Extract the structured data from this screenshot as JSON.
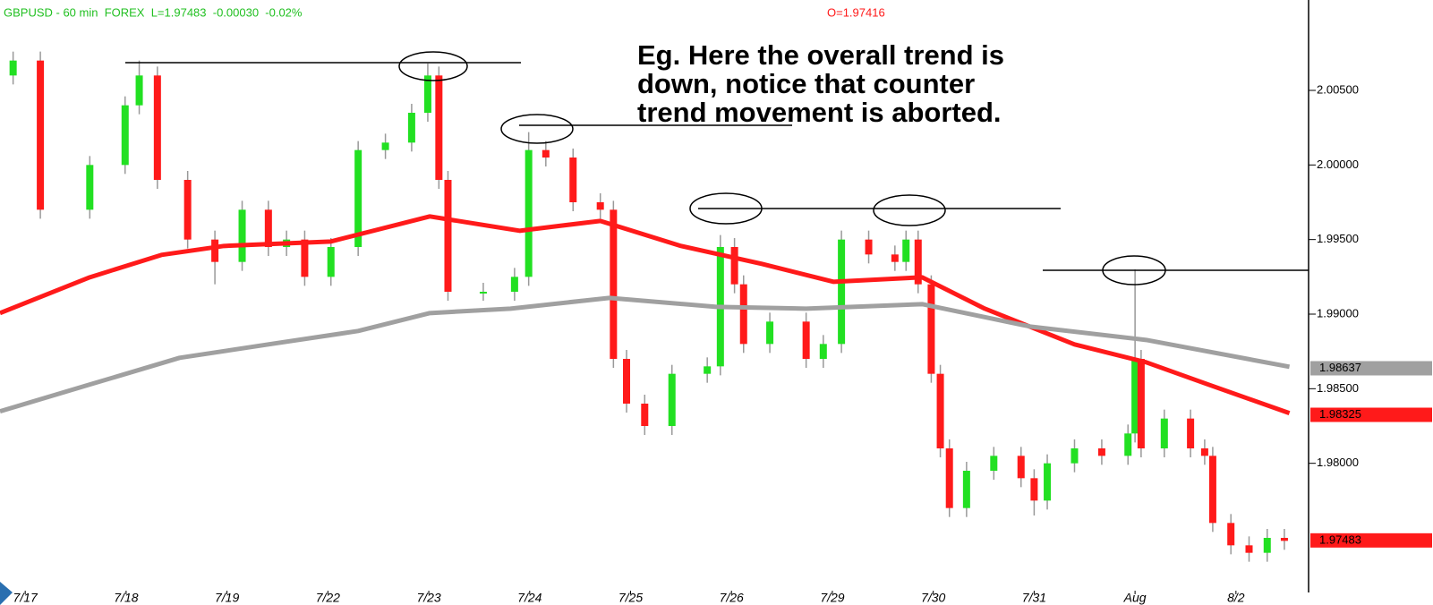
{
  "chart_data": {
    "type": "candlestick",
    "header": "GBPUSD - 60 min  FOREX  L=1.97483  -0.00030  -0.02%",
    "header_open": "O=1.97416",
    "annotation": [
      "Eg. Here the overall trend is",
      "down, notice that counter",
      "trend movement is aborted."
    ],
    "up_color": "#22e022",
    "down_color": "#ff1a1a",
    "xlim": [
      -0.25,
      12.72
    ],
    "xticks": [
      {
        "value": 0,
        "label": "7/17"
      },
      {
        "value": 1,
        "label": "7/18"
      },
      {
        "value": 2,
        "label": "7/19"
      },
      {
        "value": 3,
        "label": "7/22"
      },
      {
        "value": 4,
        "label": "7/23"
      },
      {
        "value": 5,
        "label": "7/24"
      },
      {
        "value": 6,
        "label": "7/25"
      },
      {
        "value": 7,
        "label": "7/26"
      },
      {
        "value": 8,
        "label": "7/29"
      },
      {
        "value": 9,
        "label": "7/30"
      },
      {
        "value": 10,
        "label": "7/31"
      },
      {
        "value": 11,
        "label": "Aug"
      },
      {
        "value": 12,
        "label": "8/2"
      }
    ],
    "ylim": [
      1.97146,
      2.01106
    ],
    "yticks": [
      {
        "value": 2.005,
        "label": "2.00500"
      },
      {
        "value": 2.0,
        "label": "2.00000"
      },
      {
        "value": 1.995,
        "label": "1.99500"
      },
      {
        "value": 1.99,
        "label": "1.99000"
      },
      {
        "value": 1.985,
        "label": "1.98500"
      },
      {
        "value": 1.98,
        "label": "1.98000"
      }
    ],
    "price_tags": [
      {
        "value": 1.98637,
        "label": "1.98637",
        "color": "#a0a0a0"
      },
      {
        "value": 1.98325,
        "label": "1.98325",
        "color": "#ff1a1a"
      },
      {
        "value": 1.97483,
        "label": "1.97483",
        "color": "#ff1a1a"
      }
    ],
    "x": [
      -0.12,
      0.15,
      0.64,
      0.99,
      1.13,
      1.31,
      1.61,
      1.88,
      2.15,
      2.41,
      2.59,
      2.77,
      3.03,
      3.3,
      3.57,
      3.83,
      3.99,
      4.1,
      4.19,
      4.54,
      4.85,
      4.99,
      5.16,
      5.43,
      5.7,
      5.83,
      5.96,
      6.14,
      6.41,
      6.76,
      6.89,
      7.03,
      7.12,
      7.38,
      7.74,
      7.91,
      8.09,
      8.36,
      8.62,
      8.73,
      8.85,
      8.98,
      9.07,
      9.16,
      9.33,
      9.6,
      9.87,
      10.0,
      10.13,
      10.4,
      10.67,
      10.93,
      11.0,
      11.06,
      11.29,
      11.55,
      11.69,
      11.77,
      11.95,
      12.13,
      12.31,
      12.48
    ],
    "open": [
      2.006,
      2.007,
      1.997,
      2.0,
      2.004,
      2.006,
      1.999,
      1.995,
      1.9935,
      1.997,
      1.9945,
      1.995,
      1.9925,
      1.9945,
      2.001,
      2.0015,
      2.0035,
      2.006,
      1.999,
      1.9915,
      1.9915,
      1.9925,
      2.001,
      2.0005,
      1.9975,
      1.997,
      1.987,
      1.984,
      1.9825,
      1.986,
      1.9865,
      1.9945,
      1.992,
      1.988,
      1.9895,
      1.987,
      1.988,
      1.995,
      1.994,
      1.9935,
      1.995,
      1.992,
      1.986,
      1.981,
      1.977,
      1.9795,
      1.9805,
      1.979,
      1.9775,
      1.98,
      1.981,
      1.9805,
      1.982,
      1.987,
      1.981,
      1.983,
      1.981,
      1.9805,
      1.976,
      1.9745,
      1.974,
      1.975
    ],
    "high": [
      2.0076,
      2.0076,
      2.0006,
      2.0046,
      2.007,
      2.0066,
      1.9996,
      1.9956,
      1.9976,
      1.9976,
      1.9956,
      1.9956,
      1.9951,
      2.0016,
      2.0021,
      2.0041,
      2.0068,
      2.0066,
      1.9996,
      1.9921,
      1.9931,
      2.0022,
      2.0016,
      2.0011,
      1.9981,
      1.9976,
      1.9876,
      1.9846,
      1.9866,
      1.9871,
      1.9953,
      1.9951,
      1.9926,
      1.9901,
      1.9901,
      1.9886,
      1.9956,
      1.9956,
      1.9946,
      1.9956,
      1.9956,
      1.9926,
      1.9866,
      1.9816,
      1.9801,
      1.9811,
      1.9811,
      1.9796,
      1.9806,
      1.9816,
      1.9816,
      1.9826,
      1.993,
      1.9876,
      1.9836,
      1.9836,
      1.9816,
      1.9811,
      1.9766,
      1.9751,
      1.9756,
      1.9756
    ],
    "low": [
      2.0054,
      1.9964,
      1.9964,
      1.9994,
      2.0034,
      1.9984,
      1.9944,
      1.992,
      1.9929,
      1.9939,
      1.9939,
      1.9919,
      1.9919,
      1.9939,
      2.0004,
      2.0009,
      2.0029,
      1.9984,
      1.9909,
      1.9909,
      1.9909,
      1.9919,
      1.9999,
      1.9969,
      1.9964,
      1.9864,
      1.9834,
      1.9819,
      1.9819,
      1.9854,
      1.9859,
      1.9914,
      1.9874,
      1.9874,
      1.9864,
      1.9864,
      1.9874,
      1.9934,
      1.9929,
      1.9929,
      1.9914,
      1.9854,
      1.9804,
      1.9764,
      1.9764,
      1.9789,
      1.9784,
      1.9765,
      1.9769,
      1.9794,
      1.9799,
      1.9799,
      1.9814,
      1.9804,
      1.9804,
      1.9804,
      1.9799,
      1.9754,
      1.9739,
      1.9734,
      1.9734,
      1.9742
    ],
    "close": [
      2.007,
      1.997,
      2.0,
      2.004,
      2.006,
      1.999,
      1.995,
      1.9935,
      1.997,
      1.9945,
      1.995,
      1.9925,
      1.9945,
      2.001,
      2.0015,
      2.0035,
      2.006,
      1.999,
      1.9915,
      1.9915,
      1.9925,
      2.001,
      2.0005,
      1.9975,
      1.997,
      1.987,
      1.984,
      1.9825,
      1.986,
      1.9865,
      1.9945,
      1.992,
      1.988,
      1.9895,
      1.987,
      1.988,
      1.995,
      1.994,
      1.9935,
      1.995,
      1.992,
      1.986,
      1.981,
      1.977,
      1.9795,
      1.9805,
      1.979,
      1.9775,
      1.98,
      1.981,
      1.9805,
      1.982,
      1.987,
      1.981,
      1.983,
      1.981,
      1.9805,
      1.976,
      1.9745,
      1.974,
      1.975,
      1.9748
    ],
    "series": [
      {
        "color": "#ff1a1a",
        "x": [
          -0.25,
          0.64,
          1.35,
          1.97,
          3.03,
          4.01,
          4.9,
          5.7,
          6.5,
          7.3,
          8.01,
          8.89,
          9.51,
          10.4,
          11.11,
          11.73,
          12.53
        ],
        "values": [
          1.99007,
          1.99247,
          1.99397,
          1.99457,
          1.99487,
          1.99655,
          1.99559,
          1.99625,
          1.99457,
          1.99337,
          1.99217,
          1.99247,
          1.99037,
          1.98797,
          1.98677,
          1.98527,
          1.98336
        ]
      },
      {
        "color": "#a0a0a0",
        "x": [
          -0.25,
          0.64,
          1.53,
          2.41,
          3.3,
          4.01,
          4.81,
          5.79,
          6.85,
          7.74,
          8.89,
          9.96,
          11.11,
          12.53
        ],
        "values": [
          1.98348,
          1.98528,
          1.98707,
          1.98797,
          1.98887,
          1.99007,
          1.99037,
          1.99109,
          1.99049,
          1.99037,
          1.99067,
          1.98917,
          1.98827,
          1.98647
        ]
      }
    ]
  }
}
